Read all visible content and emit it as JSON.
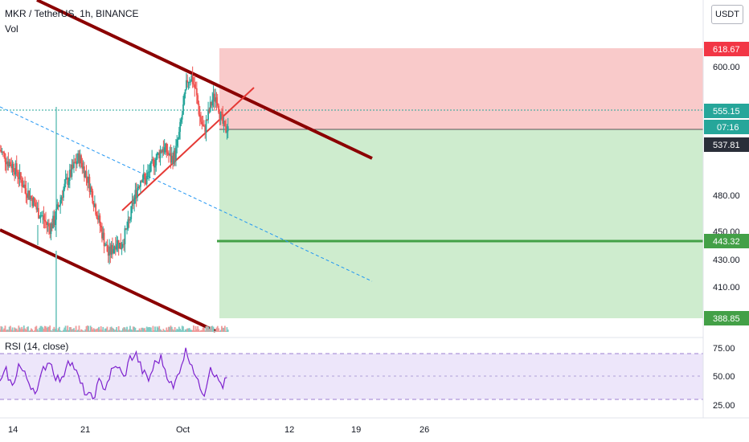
{
  "header": {
    "symbol_title": "MKR / TetherUS, 1h, BINANCE",
    "volume_label": "Vol",
    "currency_button": "USDT"
  },
  "rsi_panel": {
    "label": "RSI (14, close)",
    "ticks": [
      "75.00",
      "50.00",
      "25.00"
    ]
  },
  "price_axis": {
    "ticks": [
      "600.00",
      "480.00",
      "450.00",
      "430.00",
      "410.00"
    ],
    "badges": [
      {
        "label": "618.67",
        "color": "#f23645"
      },
      {
        "label": "555.15",
        "color": "#26a69a"
      },
      {
        "label": "07:16",
        "color": "#26a69a"
      },
      {
        "label": "537.81",
        "color": "#2a2e39"
      },
      {
        "label": "443.32",
        "color": "#43a047"
      },
      {
        "label": "388.85",
        "color": "#43a047"
      }
    ]
  },
  "time_axis": {
    "ticks": [
      "14",
      "21",
      "Oct",
      "12",
      "19",
      "26"
    ]
  },
  "chart_data": {
    "type": "candlestick",
    "title": "MKR / TetherUS, 1h, BINANCE",
    "price_range": [
      373,
      657
    ],
    "rsi_range": [
      15,
      85
    ],
    "price_series": [
      [
        0,
        532
      ],
      [
        2,
        527
      ],
      [
        4,
        522
      ],
      [
        6,
        519
      ],
      [
        8,
        514
      ],
      [
        10,
        506
      ],
      [
        12,
        500
      ],
      [
        14,
        494
      ],
      [
        16,
        488
      ],
      [
        18,
        480
      ],
      [
        20,
        476
      ],
      [
        22,
        470
      ],
      [
        24,
        466
      ],
      [
        26,
        472
      ],
      [
        28,
        484
      ],
      [
        30,
        496
      ],
      [
        32,
        505
      ],
      [
        34,
        512
      ],
      [
        36,
        520
      ],
      [
        38,
        526
      ],
      [
        40,
        517
      ],
      [
        42,
        508
      ],
      [
        44,
        496
      ],
      [
        46,
        482
      ],
      [
        48,
        468
      ],
      [
        50,
        455
      ],
      [
        52,
        443
      ],
      [
        54,
        448
      ],
      [
        56,
        455
      ],
      [
        58,
        450
      ],
      [
        60,
        460
      ],
      [
        62,
        470
      ],
      [
        64,
        488
      ],
      [
        66,
        500
      ],
      [
        68,
        510
      ],
      [
        70,
        506
      ],
      [
        72,
        515
      ],
      [
        74,
        522
      ],
      [
        76,
        528
      ],
      [
        78,
        534
      ],
      [
        80,
        531
      ],
      [
        82,
        524
      ],
      [
        84,
        528
      ],
      [
        86,
        545
      ],
      [
        88,
        568
      ],
      [
        90,
        592
      ],
      [
        92,
        594
      ],
      [
        94,
        582
      ],
      [
        96,
        560
      ],
      [
        98,
        548
      ],
      [
        100,
        562
      ],
      [
        102,
        575
      ],
      [
        104,
        578
      ],
      [
        106,
        560
      ],
      [
        108,
        548
      ],
      [
        110,
        556
      ]
    ],
    "rsi_series": [
      [
        0,
        42
      ],
      [
        3,
        56
      ],
      [
        6,
        38
      ],
      [
        9,
        63
      ],
      [
        12,
        52
      ],
      [
        15,
        40
      ],
      [
        18,
        34
      ],
      [
        21,
        58
      ],
      [
        24,
        68
      ],
      [
        27,
        50
      ],
      [
        30,
        45
      ],
      [
        33,
        70
      ],
      [
        36,
        60
      ],
      [
        39,
        42
      ],
      [
        42,
        30
      ],
      [
        45,
        26
      ],
      [
        48,
        44
      ],
      [
        51,
        38
      ],
      [
        54,
        55
      ],
      [
        57,
        62
      ],
      [
        60,
        48
      ],
      [
        63,
        70
      ],
      [
        66,
        74
      ],
      [
        69,
        56
      ],
      [
        72,
        46
      ],
      [
        75,
        64
      ],
      [
        78,
        70
      ],
      [
        81,
        52
      ],
      [
        84,
        36
      ],
      [
        87,
        58
      ],
      [
        90,
        78
      ],
      [
        93,
        64
      ],
      [
        96,
        42
      ],
      [
        99,
        32
      ],
      [
        102,
        62
      ],
      [
        105,
        48
      ],
      [
        108,
        40
      ],
      [
        111,
        52
      ]
    ],
    "position_tool": {
      "entry": 537.81,
      "stop": 618.67,
      "target": 388.85,
      "take_profit_line": 443.32
    }
  }
}
